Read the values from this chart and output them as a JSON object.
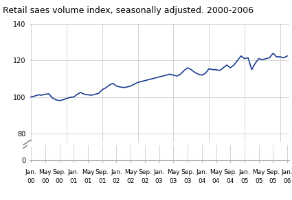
{
  "title": "Retail saes volume index, seasonally adjusted. 2000-2006",
  "line_color": "#1a3a8f",
  "line_width": 1.2,
  "background_color": "#ffffff",
  "grid_color": "#cccccc",
  "values": [
    100.0,
    100.5,
    101.2,
    101.0,
    101.5,
    101.8,
    99.5,
    98.5,
    98.0,
    98.5,
    99.2,
    99.8,
    100.0,
    101.5,
    102.5,
    101.5,
    101.2,
    101.0,
    101.5,
    102.0,
    104.0,
    105.0,
    106.5,
    107.5,
    106.0,
    105.5,
    105.2,
    105.5,
    106.0,
    107.0,
    108.0,
    108.5,
    109.0,
    109.5,
    110.0,
    110.5,
    111.0,
    111.5,
    112.0,
    112.5,
    112.0,
    111.5,
    112.5,
    114.5,
    116.0,
    115.0,
    113.5,
    112.5,
    112.0,
    113.0,
    115.5,
    115.0,
    115.0,
    114.5,
    116.0,
    117.5,
    116.0,
    117.5,
    120.0,
    122.5,
    121.0,
    121.5,
    115.0,
    118.5,
    121.0,
    120.5,
    121.0,
    121.5,
    124.0,
    122.0,
    122.0,
    121.5,
    122.5
  ],
  "tick_labels_row1": [
    "Jan.",
    "May",
    "Sep.",
    "Jan.",
    "May",
    "Sep.",
    "Jan.",
    "May",
    "Sep.",
    "Jan.",
    "May",
    "Sep.",
    "Jan.",
    "May",
    "Sep.",
    "Jan.",
    "May",
    "Sep.",
    "Jan."
  ],
  "tick_labels_row2": [
    "00",
    "00",
    "00",
    "01",
    "01",
    "01",
    "02",
    "02",
    "02",
    "03",
    "03",
    "03",
    "04",
    "04",
    "04",
    "05",
    "05",
    "05",
    "06"
  ],
  "tick_positions_months": [
    0,
    4,
    8,
    12,
    16,
    20,
    24,
    28,
    32,
    36,
    40,
    44,
    48,
    52,
    56,
    60,
    64,
    68,
    72
  ],
  "upper_ylim": [
    75,
    140
  ],
  "lower_ylim": [
    0,
    10
  ],
  "upper_yticks": [
    80,
    100,
    120,
    140
  ],
  "lower_yticks": [
    0
  ],
  "title_fontsize": 9,
  "tick_fontsize": 7
}
